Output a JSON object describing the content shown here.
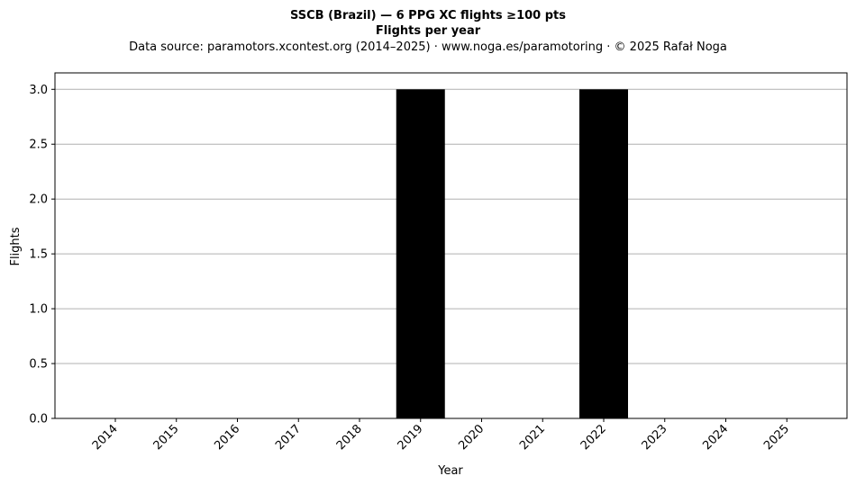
{
  "chart_data": {
    "type": "bar",
    "title": "SSCB (Brazil)  —  6 PPG XC flights ≥100 pts",
    "subtitle": "Flights per year",
    "source_note": "Data source: paramotors.xcontest.org (2014–2025)  ·  www.noga.es/paramotoring  ·  © 2025 Rafał Noga",
    "xlabel": "Year",
    "ylabel": "Flights",
    "categories": [
      "2014",
      "2015",
      "2016",
      "2017",
      "2018",
      "2019",
      "2020",
      "2021",
      "2022",
      "2023",
      "2024",
      "2025"
    ],
    "values": [
      0,
      0,
      0,
      0,
      0,
      3,
      0,
      0,
      3,
      0,
      0,
      0
    ],
    "ylim": [
      0,
      3.15
    ],
    "yticks": [
      "0.0",
      "0.5",
      "1.0",
      "1.5",
      "2.0",
      "2.5",
      "3.0"
    ],
    "grid": "horizontal",
    "bar_color": "#000000",
    "grid_color": "#b0b0b0"
  }
}
